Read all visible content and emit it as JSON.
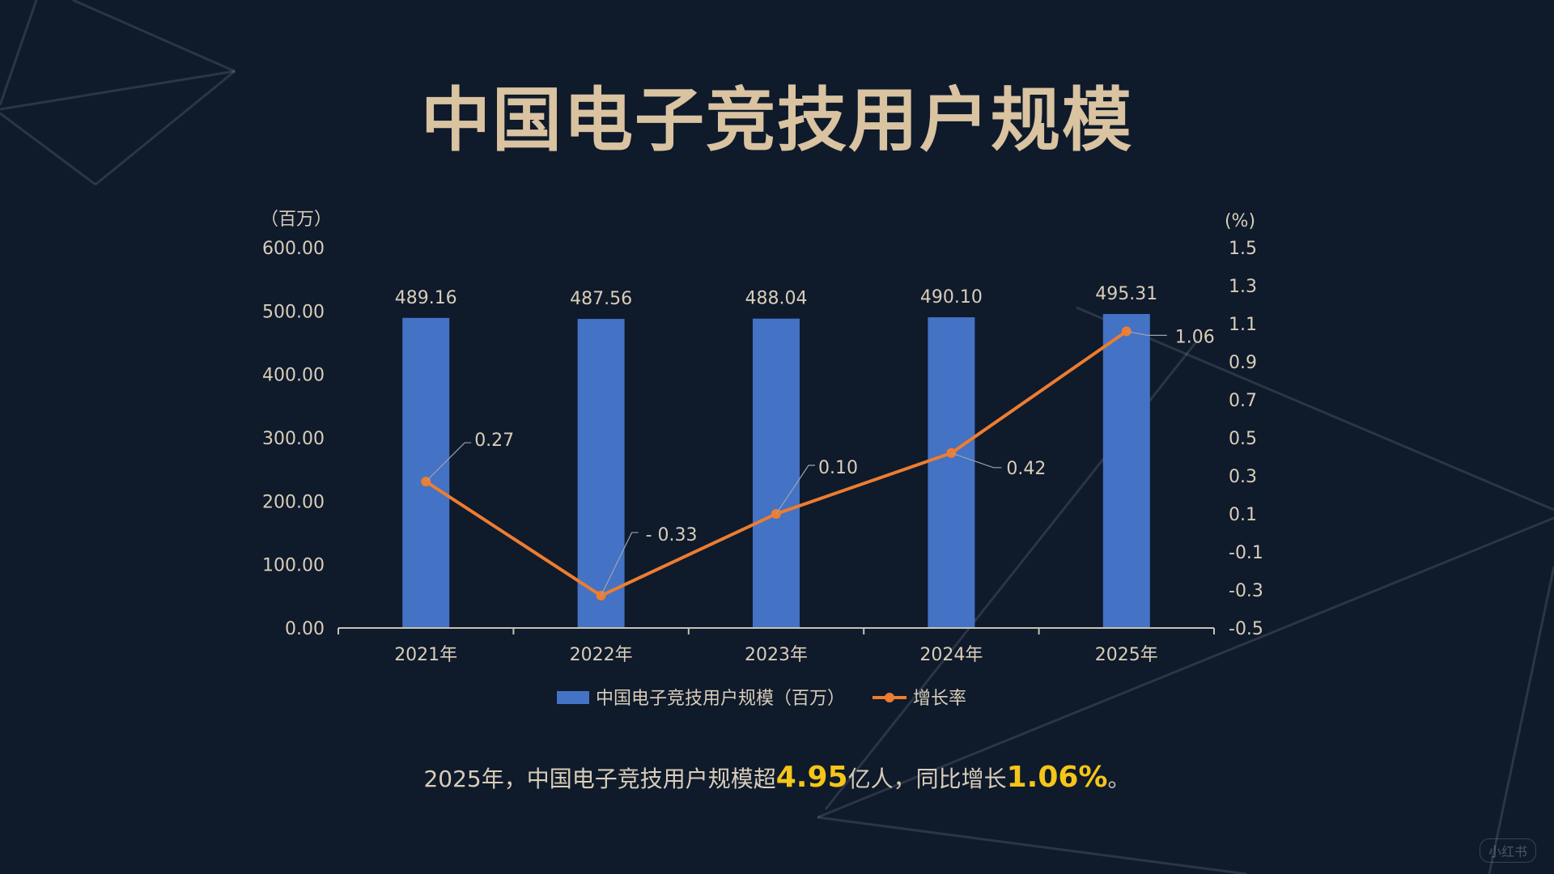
{
  "title": "中国电子竞技用户规模",
  "summary": {
    "p1": "2025年，中国电子竞技用户规模超",
    "v1": "4.95",
    "p2": "亿人，同比增长",
    "v2": "1.06%",
    "p3": "。"
  },
  "watermark": "小红书",
  "chart_data": {
    "type": "bar",
    "categories": [
      "2021年",
      "2022年",
      "2023年",
      "2024年",
      "2025年"
    ],
    "series": [
      {
        "name": "中国电子竞技用户规模（百万）",
        "type": "bar",
        "axis": "left",
        "color": "#4472c4",
        "values": [
          489.16,
          487.56,
          488.04,
          490.1,
          495.31
        ],
        "labels": [
          "489.16",
          "487.56",
          "488.04",
          "490.10",
          "495.31"
        ]
      },
      {
        "name": "增长率",
        "type": "line",
        "axis": "right",
        "color": "#ed7d31",
        "values": [
          0.27,
          -0.33,
          0.1,
          0.42,
          1.06
        ],
        "labels": [
          "0.27",
          "- 0.33",
          "0.10",
          "0.42",
          "1.06"
        ]
      }
    ],
    "y_left": {
      "unit": "（百万）",
      "ylim": [
        0,
        600
      ],
      "ticks": [
        "0.00",
        "100.00",
        "200.00",
        "300.00",
        "400.00",
        "500.00",
        "600.00"
      ]
    },
    "y_right": {
      "unit": "(%)",
      "ylim": [
        -0.5,
        1.5
      ],
      "ticks": [
        "-0.5",
        "-0.3",
        "-0.1",
        "0.1",
        "0.3",
        "0.5",
        "0.7",
        "0.9",
        "1.1",
        "1.3",
        "1.5"
      ]
    },
    "grid": false,
    "legend": "bottom"
  }
}
